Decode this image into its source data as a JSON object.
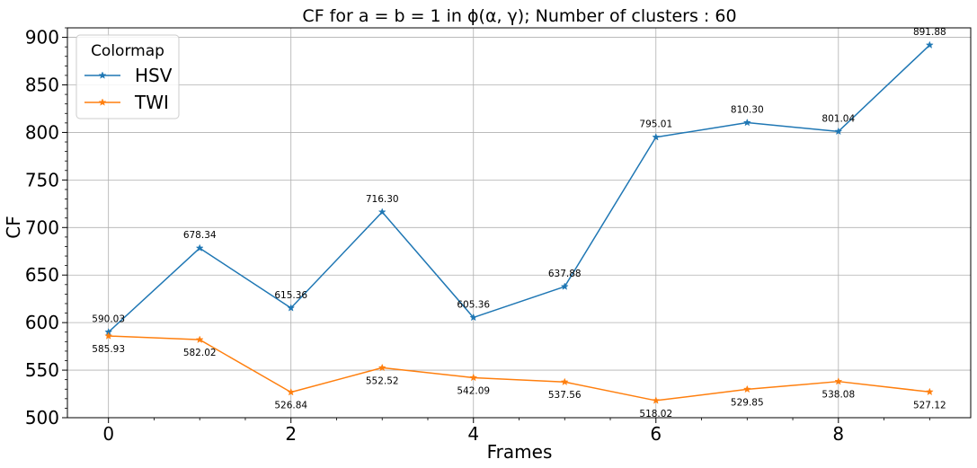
{
  "chart_data": {
    "type": "line",
    "title": "CF for a = b = 1 in ϕ(α, γ); Number of clusters : 60",
    "xlabel": "Frames",
    "ylabel": "CF",
    "x": [
      0,
      1,
      2,
      3,
      4,
      5,
      6,
      7,
      8,
      9
    ],
    "xlim": [
      -0.45,
      9.45
    ],
    "ylim": [
      500,
      910
    ],
    "xticks": [
      0,
      2,
      4,
      6,
      8
    ],
    "yticks": [
      500,
      550,
      600,
      650,
      700,
      750,
      800,
      850,
      900
    ],
    "grid": true,
    "legend": {
      "title": "Colormap",
      "placement": "top-left"
    },
    "series": [
      {
        "name": "HSV",
        "color": "#1f77b4",
        "marker": "star",
        "values": [
          590.03,
          678.34,
          615.36,
          716.3,
          605.36,
          637.88,
          795.01,
          810.3,
          801.04,
          891.88
        ],
        "labels": [
          "590.03",
          "678.34",
          "615.36",
          "716.30",
          "605.36",
          "637.88",
          "795.01",
          "810.30",
          "801.04",
          "891.88"
        ]
      },
      {
        "name": "TWI",
        "color": "#ff7f0e",
        "marker": "star",
        "values": [
          585.93,
          582.02,
          526.84,
          552.52,
          542.09,
          537.56,
          518.02,
          529.85,
          538.08,
          527.12
        ],
        "labels": [
          "585.93",
          "582.02",
          "526.84",
          "552.52",
          "542.09",
          "537.56",
          "518.02",
          "529.85",
          "538.08",
          "527.12"
        ]
      }
    ]
  }
}
